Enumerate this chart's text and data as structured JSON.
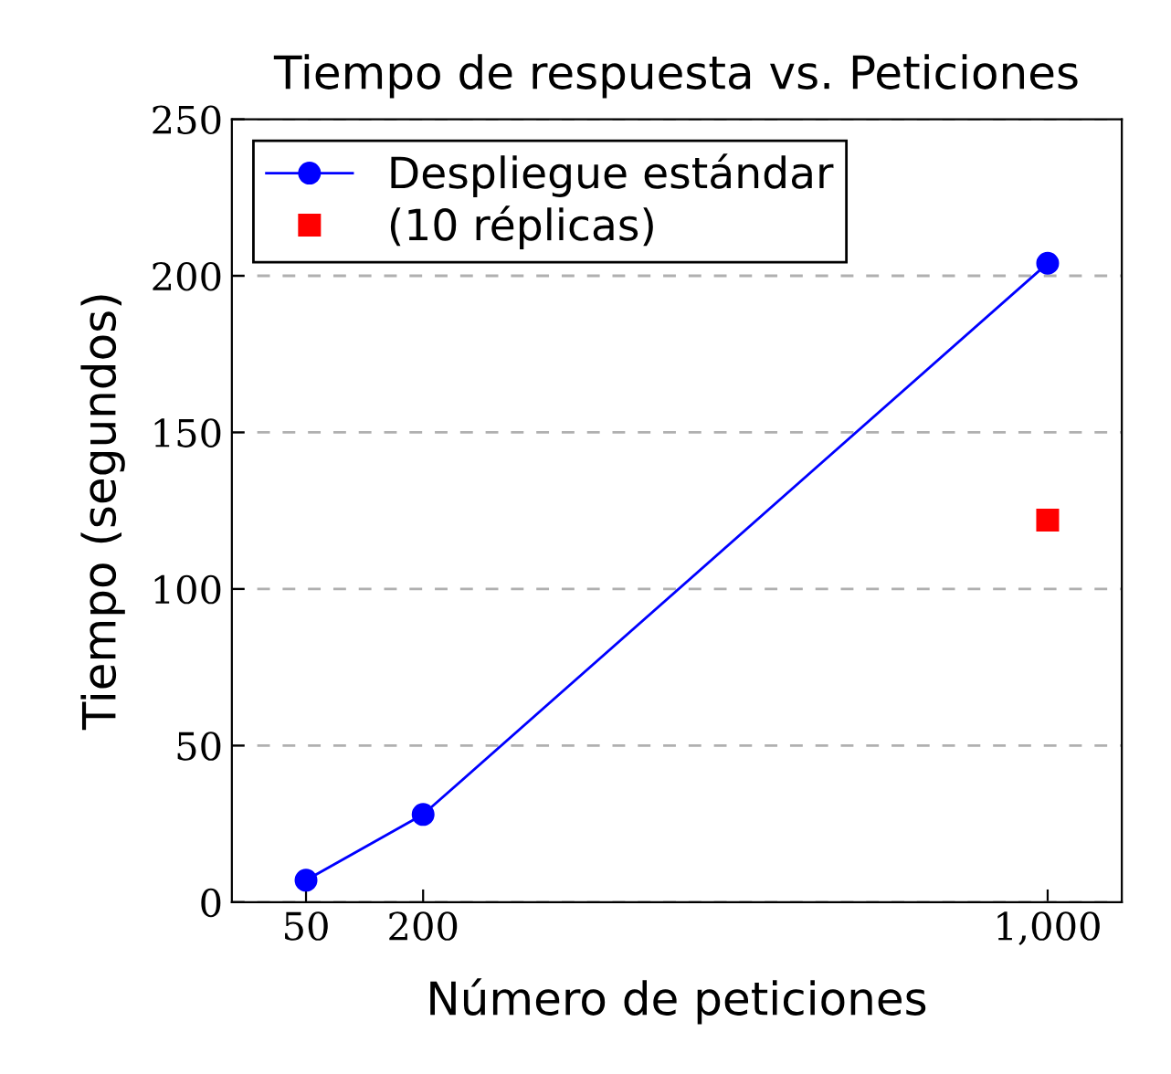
{
  "chart_data": {
    "type": "line",
    "title": "Tiempo de respuesta vs. Peticiones",
    "xlabel": "Número de peticiones",
    "ylabel": "Tiempo (segundos)",
    "series": [
      {
        "name": "Despliegue estándar",
        "color": "#0000ff",
        "x": [
          50,
          200,
          1000
        ],
        "values": [
          7,
          28,
          204
        ],
        "marker": "circle"
      },
      {
        "name": "(10 réplicas)",
        "color": "#ff0000",
        "type": "scatter",
        "x": [
          1000
        ],
        "values": [
          122
        ],
        "marker": "square"
      }
    ],
    "xlim": [
      -45,
      1095
    ],
    "xticks": [
      50,
      200,
      {
        "value": 1000,
        "label": "1,000"
      }
    ],
    "ylim": [
      0,
      250
    ],
    "yticks": [
      0,
      50,
      100,
      150,
      200,
      250
    ],
    "grid": "y",
    "legend": "top left"
  }
}
